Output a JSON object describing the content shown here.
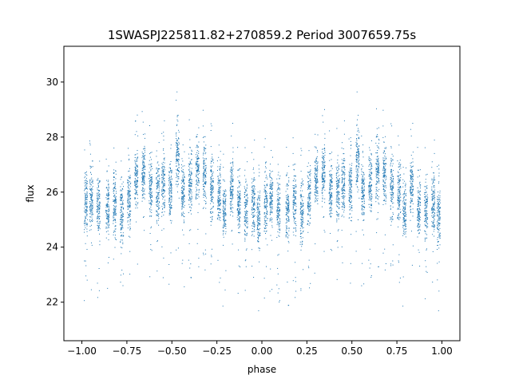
{
  "chart_data": {
    "type": "scatter",
    "title": "1SWASPJ225811.82+270859.2 Period 3007659.75s",
    "xlabel": "phase",
    "ylabel": "flux",
    "xlim": [
      -1.1,
      1.1
    ],
    "ylim": [
      20.6,
      31.3
    ],
    "xticks": [
      -1.0,
      -0.75,
      -0.5,
      -0.25,
      0.0,
      0.25,
      0.5,
      0.75,
      1.0
    ],
    "xtick_labels": [
      "−1.00",
      "−0.75",
      "−0.50",
      "−0.25",
      "0.00",
      "0.25",
      "0.50",
      "0.75",
      "1.00"
    ],
    "yticks": [
      22,
      24,
      26,
      28,
      30
    ],
    "ytick_labels": [
      "22",
      "24",
      "26",
      "28",
      "30"
    ],
    "grid": false,
    "marker_color": "#1f77b4",
    "series": [
      {
        "name": "",
        "cluster_profile": [
          {
            "phase": -0.98,
            "flux": 25.6
          },
          {
            "phase": -0.95,
            "flux": 25.8
          },
          {
            "phase": -0.91,
            "flux": 25.5
          },
          {
            "phase": -0.86,
            "flux": 25.4
          },
          {
            "phase": -0.82,
            "flux": 25.6
          },
          {
            "phase": -0.78,
            "flux": 25.3
          },
          {
            "phase": -0.74,
            "flux": 25.8
          },
          {
            "phase": -0.7,
            "flux": 26.6
          },
          {
            "phase": -0.66,
            "flux": 26.8
          },
          {
            "phase": -0.62,
            "flux": 26.1
          },
          {
            "phase": -0.58,
            "flux": 26.0
          },
          {
            "phase": -0.55,
            "flux": 26.3
          },
          {
            "phase": -0.51,
            "flux": 26.1
          },
          {
            "phase": -0.47,
            "flux": 27.3
          },
          {
            "phase": -0.44,
            "flux": 26.0
          },
          {
            "phase": -0.4,
            "flux": 26.4
          },
          {
            "phase": -0.36,
            "flux": 26.8
          },
          {
            "phase": -0.32,
            "flux": 26.6
          },
          {
            "phase": -0.28,
            "flux": 26.2
          },
          {
            "phase": -0.24,
            "flux": 26.0
          },
          {
            "phase": -0.21,
            "flux": 25.4
          },
          {
            "phase": -0.17,
            "flux": 26.3
          },
          {
            "phase": -0.13,
            "flux": 25.5
          },
          {
            "phase": -0.09,
            "flux": 25.3
          },
          {
            "phase": -0.05,
            "flux": 25.6
          },
          {
            "phase": -0.02,
            "flux": 25.1
          },
          {
            "phase": 0.02,
            "flux": 25.6
          },
          {
            "phase": 0.05,
            "flux": 25.8
          },
          {
            "phase": 0.09,
            "flux": 25.5
          },
          {
            "phase": 0.14,
            "flux": 25.4
          },
          {
            "phase": 0.18,
            "flux": 25.6
          },
          {
            "phase": 0.22,
            "flux": 25.3
          },
          {
            "phase": 0.26,
            "flux": 25.8
          },
          {
            "phase": 0.3,
            "flux": 26.6
          },
          {
            "phase": 0.34,
            "flux": 26.8
          },
          {
            "phase": 0.38,
            "flux": 26.1
          },
          {
            "phase": 0.42,
            "flux": 26.0
          },
          {
            "phase": 0.45,
            "flux": 26.3
          },
          {
            "phase": 0.49,
            "flux": 26.1
          },
          {
            "phase": 0.53,
            "flux": 27.3
          },
          {
            "phase": 0.56,
            "flux": 26.0
          },
          {
            "phase": 0.6,
            "flux": 26.4
          },
          {
            "phase": 0.64,
            "flux": 26.8
          },
          {
            "phase": 0.68,
            "flux": 26.6
          },
          {
            "phase": 0.72,
            "flux": 26.2
          },
          {
            "phase": 0.76,
            "flux": 26.0
          },
          {
            "phase": 0.79,
            "flux": 25.4
          },
          {
            "phase": 0.83,
            "flux": 26.3
          },
          {
            "phase": 0.87,
            "flux": 25.5
          },
          {
            "phase": 0.91,
            "flux": 25.3
          },
          {
            "phase": 0.95,
            "flux": 25.6
          },
          {
            "phase": 0.98,
            "flux": 25.1
          }
        ]
      }
    ]
  }
}
